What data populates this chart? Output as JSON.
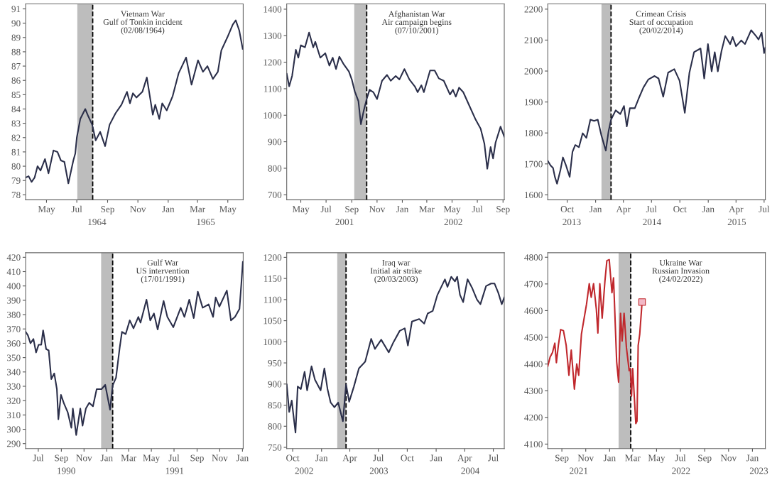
{
  "chart_data": [
    {
      "type": "line",
      "xlim": [
        "1964-03-20",
        "1965-06-01"
      ],
      "ylim": [
        77.65,
        91.35
      ],
      "yticks": [
        78,
        79,
        80,
        81,
        82,
        83,
        84,
        85,
        86,
        87,
        88,
        89,
        90,
        91
      ],
      "xticks": [
        {
          "value": "1964-05-01",
          "label": "May"
        },
        {
          "value": "1964-07-01",
          "label": "Jul"
        },
        {
          "value": "1964-09-01",
          "label": "Sep"
        },
        {
          "value": "1964-11-01",
          "label": "Nov"
        },
        {
          "value": "1965-01-01",
          "label": "Jan"
        },
        {
          "value": "1965-03-01",
          "label": "Mar"
        },
        {
          "value": "1965-05-01",
          "label": "May"
        }
      ],
      "annotations": [
        "1964",
        "1965"
      ],
      "bands": [
        {
          "axis": "x",
          "from": "1964-07-02",
          "to": "1964-08-02",
          "color": "#bdbdbd"
        }
      ],
      "ref_lines": [
        {
          "axis": "x",
          "value": "1964-08-02",
          "label": "Vietnam War\nGulf of Tonkin incident\n(02/08/1964)",
          "color": "#000000",
          "line_style": "dashed"
        }
      ],
      "series": [
        {
          "color": "#2b2f4a",
          "x": [
            "1964-03-20",
            "1964-03-26",
            "1964-04-01",
            "1964-04-07",
            "1964-04-13",
            "1964-04-19",
            "1964-04-28",
            "1964-05-05",
            "1964-05-15",
            "1964-05-23",
            "1964-05-30",
            "1964-06-06",
            "1964-06-14",
            "1964-06-24",
            "1964-06-28",
            "1964-07-01",
            "1964-07-08",
            "1964-07-18",
            "1964-07-24",
            "1964-08-01",
            "1964-08-08",
            "1964-08-17",
            "1964-08-27",
            "1964-09-05",
            "1964-09-17",
            "1964-09-29",
            "1964-10-10",
            "1964-10-16",
            "1964-10-22",
            "1964-10-29",
            "1964-11-10",
            "1964-11-19",
            "1964-12-01",
            "1964-12-06",
            "1964-12-14",
            "1964-12-20",
            "1964-12-29",
            "1965-01-10",
            "1965-01-22",
            "1965-02-06",
            "1965-02-17",
            "1965-03-02",
            "1965-03-12",
            "1965-03-21",
            "1965-04-01",
            "1965-04-11",
            "1965-04-18",
            "1965-04-30",
            "1965-05-11",
            "1965-05-17",
            "1965-05-24",
            "1965-05-31"
          ],
          "values": [
            79.2,
            79.3,
            78.9,
            79.2,
            80.0,
            79.7,
            80.5,
            79.5,
            81.1,
            81.0,
            80.4,
            80.3,
            78.8,
            80.4,
            80.9,
            82.0,
            83.3,
            84.0,
            83.5,
            82.9,
            81.8,
            82.4,
            81.4,
            82.9,
            83.7,
            84.3,
            85.2,
            84.4,
            85.1,
            84.8,
            85.2,
            86.2,
            83.6,
            84.3,
            83.3,
            84.4,
            83.9,
            84.9,
            86.5,
            87.6,
            85.7,
            87.4,
            86.6,
            87.0,
            86.1,
            86.6,
            88.1,
            89.0,
            89.9,
            90.2,
            89.5,
            88.2
          ]
        }
      ]
    },
    {
      "type": "line",
      "xlim": [
        "2001-03-28",
        "2002-09-04"
      ],
      "ylim": [
        681,
        1420
      ],
      "yticks": [
        700,
        800,
        900,
        1000,
        1100,
        1200,
        1300,
        1400
      ],
      "xticks": [
        {
          "value": "2001-05-01",
          "label": "May"
        },
        {
          "value": "2001-07-01",
          "label": "Jul"
        },
        {
          "value": "2001-09-01",
          "label": "Sep"
        },
        {
          "value": "2001-11-01",
          "label": "Nov"
        },
        {
          "value": "2002-01-01",
          "label": "Jan"
        },
        {
          "value": "2002-03-01",
          "label": "Mar"
        },
        {
          "value": "2002-05-01",
          "label": "May"
        },
        {
          "value": "2002-07-01",
          "label": "Jul"
        },
        {
          "value": "2002-09-01",
          "label": "Sep"
        }
      ],
      "annotations": [
        "2001",
        "2002"
      ],
      "bands": [
        {
          "axis": "x",
          "from": "2001-09-07",
          "to": "2001-10-07",
          "color": "#bdbdbd"
        }
      ],
      "ref_lines": [
        {
          "axis": "x",
          "value": "2001-10-07",
          "label": "Afghanistan War\nAir campaign begins\n(07/10/2001)",
          "color": "#000000",
          "line_style": "dashed"
        }
      ],
      "series": [
        {
          "color": "#2b2f4a",
          "x": [
            "2001-03-28",
            "2001-04-03",
            "2001-04-10",
            "2001-04-19",
            "2001-04-25",
            "2001-05-01",
            "2001-05-11",
            "2001-05-21",
            "2001-05-31",
            "2001-06-05",
            "2001-06-17",
            "2001-06-29",
            "2001-07-09",
            "2001-07-17",
            "2001-07-25",
            "2001-08-02",
            "2001-08-13",
            "2001-08-25",
            "2001-09-01",
            "2001-09-08",
            "2001-09-17",
            "2001-09-23",
            "2001-09-30",
            "2001-10-07",
            "2001-10-14",
            "2001-10-23",
            "2001-11-01",
            "2001-11-13",
            "2001-11-25",
            "2001-12-04",
            "2001-12-16",
            "2001-12-25",
            "2002-01-06",
            "2002-01-18",
            "2002-01-31",
            "2002-02-07",
            "2002-02-16",
            "2002-02-22",
            "2002-03-09",
            "2002-03-20",
            "2002-03-30",
            "2002-04-11",
            "2002-04-26",
            "2002-05-03",
            "2002-05-10",
            "2002-05-18",
            "2002-05-28",
            "2002-06-12",
            "2002-06-27",
            "2002-07-09",
            "2002-07-18",
            "2002-07-25",
            "2002-08-02",
            "2002-08-08",
            "2002-08-14",
            "2002-08-26",
            "2002-09-04"
          ],
          "values": [
            1156,
            1109,
            1148,
            1247,
            1217,
            1264,
            1256,
            1312,
            1256,
            1277,
            1217,
            1234,
            1187,
            1217,
            1174,
            1221,
            1191,
            1165,
            1135,
            1091,
            1053,
            966,
            1018,
            1061,
            1096,
            1087,
            1061,
            1130,
            1152,
            1130,
            1148,
            1135,
            1174,
            1135,
            1109,
            1087,
            1113,
            1087,
            1169,
            1169,
            1139,
            1130,
            1078,
            1096,
            1070,
            1104,
            1087,
            1035,
            983,
            949,
            893,
            798,
            880,
            837,
            897,
            957,
            919
          ]
        }
      ]
    },
    {
      "type": "line",
      "xlim": [
        "2013-07-30",
        "2015-07-05"
      ],
      "ylim": [
        1584,
        2217
      ],
      "yticks": [
        1600,
        1700,
        1800,
        1900,
        2000,
        2100,
        2200
      ],
      "xticks": [
        {
          "value": "2013-10-01",
          "label": "Oct"
        },
        {
          "value": "2014-01-01",
          "label": "Jan"
        },
        {
          "value": "2014-04-01",
          "label": "Apr"
        },
        {
          "value": "2014-07-01",
          "label": "Jul"
        },
        {
          "value": "2014-10-01",
          "label": "Oct"
        },
        {
          "value": "2015-01-01",
          "label": "Jan"
        },
        {
          "value": "2015-04-01",
          "label": "Apr"
        },
        {
          "value": "2015-07-01",
          "label": "Jul"
        }
      ],
      "annotations": [
        "2013",
        "2014",
        "2015"
      ],
      "bands": [
        {
          "axis": "x",
          "from": "2014-01-20",
          "to": "2014-02-20",
          "color": "#bdbdbd"
        }
      ],
      "ref_lines": [
        {
          "axis": "x",
          "value": "2014-02-20",
          "label": "Crimean Crisis\nStart of occupation\n(20/02/2014)",
          "color": "#000000",
          "line_style": "dashed"
        }
      ],
      "series": [
        {
          "color": "#2b2f4a",
          "x": [
            "2013-07-30",
            "2013-08-08",
            "2013-08-16",
            "2013-08-22",
            "2013-08-29",
            "2013-09-09",
            "2013-09-17",
            "2013-09-27",
            "2013-10-09",
            "2013-10-18",
            "2013-10-27",
            "2013-11-08",
            "2013-11-20",
            "2013-12-02",
            "2013-12-15",
            "2013-12-27",
            "2014-01-08",
            "2014-01-20",
            "2014-02-03",
            "2014-02-12",
            "2014-02-20",
            "2014-03-07",
            "2014-03-22",
            "2014-04-03",
            "2014-04-12",
            "2014-04-22",
            "2014-05-08",
            "2014-05-20",
            "2014-06-05",
            "2014-06-21",
            "2014-07-11",
            "2014-07-24",
            "2014-08-08",
            "2014-08-24",
            "2014-09-13",
            "2014-09-30",
            "2014-10-17",
            "2014-11-01",
            "2014-11-16",
            "2014-12-07",
            "2014-12-19",
            "2014-12-31",
            "2015-01-12",
            "2015-01-22",
            "2015-02-01",
            "2015-02-13",
            "2015-02-25",
            "2015-03-13",
            "2015-03-21",
            "2015-04-01",
            "2015-04-18",
            "2015-04-30",
            "2015-05-20",
            "2015-06-05",
            "2015-06-13",
            "2015-06-23",
            "2015-07-01",
            "2015-07-05"
          ],
          "values": [
            1710,
            1695,
            1687,
            1658,
            1636,
            1680,
            1721,
            1695,
            1658,
            1739,
            1761,
            1754,
            1799,
            1784,
            1843,
            1839,
            1843,
            1791,
            1743,
            1806,
            1843,
            1873,
            1861,
            1887,
            1821,
            1880,
            1880,
            1910,
            1947,
            1973,
            1984,
            1976,
            1917,
            1995,
            2006,
            1969,
            1865,
            1995,
            2061,
            2073,
            1976,
            2087,
            1999,
            2061,
            1999,
            2065,
            2113,
            2087,
            2110,
            2080,
            2099,
            2087,
            2132,
            2113,
            2102,
            2124,
            2058,
            2076
          ]
        }
      ]
    },
    {
      "type": "line",
      "xlim": [
        "1990-05-28",
        "1992-01-03"
      ],
      "ylim": [
        286.5,
        423.2
      ],
      "yticks": [
        290,
        300,
        310,
        320,
        330,
        340,
        350,
        360,
        370,
        380,
        390,
        400,
        410,
        420
      ],
      "xticks": [
        {
          "value": "1990-07-01",
          "label": "Jul"
        },
        {
          "value": "1990-09-01",
          "label": "Sep"
        },
        {
          "value": "1990-11-01",
          "label": "Nov"
        },
        {
          "value": "1991-01-01",
          "label": "Jan"
        },
        {
          "value": "1991-03-01",
          "label": "Mar"
        },
        {
          "value": "1991-05-01",
          "label": "May"
        },
        {
          "value": "1991-07-01",
          "label": "Jul"
        },
        {
          "value": "1991-09-01",
          "label": "Sep"
        },
        {
          "value": "1991-11-01",
          "label": "Nov"
        },
        {
          "value": "1992-01-01",
          "label": "Jan"
        }
      ],
      "annotations": [
        "1990",
        "1991"
      ],
      "bands": [
        {
          "axis": "x",
          "from": "1990-12-17",
          "to": "1991-01-17",
          "color": "#bdbdbd"
        }
      ],
      "ref_lines": [
        {
          "axis": "x",
          "value": "1991-01-17",
          "label": "Gulf War\nUS intervention\n(17/01/1991)",
          "color": "#000000",
          "line_style": "dashed"
        }
      ],
      "series": [
        {
          "color": "#2b2f4a",
          "x": [
            "1990-05-28",
            "1990-06-03",
            "1990-06-10",
            "1990-06-18",
            "1990-06-25",
            "1990-07-02",
            "1990-07-09",
            "1990-07-14",
            "1990-07-22",
            "1990-07-29",
            "1990-08-05",
            "1990-08-13",
            "1990-08-20",
            "1990-08-24",
            "1990-08-31",
            "1990-09-08",
            "1990-09-18",
            "1990-09-28",
            "1990-10-02",
            "1990-10-11",
            "1990-10-22",
            "1990-10-28",
            "1990-11-06",
            "1990-11-15",
            "1990-11-25",
            "1990-12-05",
            "1990-12-18",
            "1990-12-28",
            "1991-01-10",
            "1991-01-17",
            "1991-01-26",
            "1991-02-05",
            "1991-02-11",
            "1991-02-21",
            "1991-03-04",
            "1991-03-14",
            "1991-03-27",
            "1991-04-02",
            "1991-04-18",
            "1991-04-28",
            "1991-05-08",
            "1991-05-18",
            "1991-06-03",
            "1991-06-13",
            "1991-06-29",
            "1991-07-19",
            "1991-07-29",
            "1991-08-11",
            "1991-08-23",
            "1991-09-03",
            "1991-09-16",
            "1991-10-02",
            "1991-10-14",
            "1991-10-21",
            "1991-10-31",
            "1991-11-20",
            "1991-12-01",
            "1991-12-12",
            "1991-12-24",
            "1991-12-29",
            "1992-01-02"
          ],
          "values": [
            368,
            365.6,
            360,
            363,
            353.6,
            359,
            359,
            369,
            356,
            355,
            335,
            339,
            328,
            307,
            324,
            318,
            312,
            301,
            314.5,
            296,
            314.5,
            302.5,
            314.5,
            318.5,
            316,
            328,
            328,
            331,
            313.7,
            330.5,
            336,
            357,
            368,
            366.4,
            376,
            370.4,
            378.4,
            374.4,
            390.4,
            376,
            380.8,
            369.6,
            389.6,
            378.4,
            371.2,
            384.8,
            378.4,
            390.4,
            377.6,
            396,
            384.8,
            387.2,
            378.4,
            392,
            385.6,
            396.8,
            376,
            378.4,
            384,
            401.6,
            416.8
          ]
        }
      ]
    },
    {
      "type": "line",
      "xlim": [
        "2002-09-12",
        "2004-08-05"
      ],
      "ylim": [
        747,
        1211
      ],
      "yticks": [
        750,
        800,
        850,
        900,
        950,
        1000,
        1050,
        1100,
        1150,
        1200
      ],
      "xticks": [
        {
          "value": "2002-10-01",
          "label": "Oct"
        },
        {
          "value": "2003-01-01",
          "label": "Jan"
        },
        {
          "value": "2003-04-01",
          "label": "Apr"
        },
        {
          "value": "2003-07-01",
          "label": "Jul"
        },
        {
          "value": "2003-10-01",
          "label": "Oct"
        },
        {
          "value": "2004-01-01",
          "label": "Jan"
        },
        {
          "value": "2004-04-01",
          "label": "Apr"
        },
        {
          "value": "2004-07-01",
          "label": "Jul"
        }
      ],
      "annotations": [
        "2002",
        "2003",
        "2004"
      ],
      "bands": [
        {
          "axis": "x",
          "from": "2003-02-20",
          "to": "2003-03-20",
          "color": "#bdbdbd"
        }
      ],
      "ref_lines": [
        {
          "axis": "x",
          "value": "2003-03-20",
          "label": "Iraq war\nInitial air strike\n(20/03/2003)",
          "color": "#000000",
          "line_style": "dashed"
        }
      ],
      "series": [
        {
          "color": "#2b2f4a",
          "x": [
            "2002-09-12",
            "2002-09-20",
            "2002-09-28",
            "2002-10-03",
            "2002-10-10",
            "2002-10-17",
            "2002-10-27",
            "2002-11-08",
            "2002-11-16",
            "2002-11-30",
            "2002-12-11",
            "2002-12-29",
            "2003-01-10",
            "2003-01-20",
            "2003-01-30",
            "2003-02-11",
            "2003-02-23",
            "2003-03-10",
            "2003-03-20",
            "2003-03-30",
            "2003-04-14",
            "2003-04-30",
            "2003-05-20",
            "2003-06-08",
            "2003-06-20",
            "2003-07-10",
            "2003-08-03",
            "2003-08-18",
            "2003-09-07",
            "2003-09-23",
            "2003-10-03",
            "2003-10-16",
            "2003-11-08",
            "2003-11-24",
            "2003-12-05",
            "2003-12-21",
            "2004-01-05",
            "2004-01-29",
            "2004-02-06",
            "2004-02-18",
            "2004-03-01",
            "2004-03-08",
            "2004-03-17",
            "2004-03-27",
            "2004-04-10",
            "2004-04-25",
            "2004-05-10",
            "2004-05-21",
            "2004-06-08",
            "2004-06-24",
            "2004-07-05",
            "2004-07-17",
            "2004-07-28",
            "2004-08-05"
          ],
          "values": [
            899,
            834,
            861,
            829,
            785,
            894,
            888,
            929,
            885,
            942,
            910,
            885,
            937,
            888,
            856,
            845,
            856,
            812,
            899,
            858,
            894,
            937,
            953,
            1007,
            983,
            1005,
            975,
            999,
            1026,
            1032,
            991,
            1048,
            1054,
            1043,
            1067,
            1073,
            1111,
            1148,
            1130,
            1154,
            1143,
            1154,
            1111,
            1094,
            1148,
            1127,
            1100,
            1089,
            1132,
            1138,
            1138,
            1116,
            1089,
            1105
          ]
        }
      ]
    },
    {
      "type": "line",
      "xlim": [
        "2021-07-27",
        "2023-02-03"
      ],
      "ylim": [
        4083,
        4817
      ],
      "yticks": [
        4100,
        4200,
        4300,
        4400,
        4500,
        4600,
        4700,
        4800
      ],
      "xticks": [
        {
          "value": "2021-09-01",
          "label": "Sep"
        },
        {
          "value": "2021-11-01",
          "label": "Nov"
        },
        {
          "value": "2022-01-01",
          "label": "Jan"
        },
        {
          "value": "2022-03-01",
          "label": "Mar"
        },
        {
          "value": "2022-05-01",
          "label": "May"
        },
        {
          "value": "2022-07-01",
          "label": "Jul"
        },
        {
          "value": "2022-09-01",
          "label": "Sep"
        },
        {
          "value": "2022-11-01",
          "label": "Nov"
        },
        {
          "value": "2023-01-01",
          "label": "Jan"
        }
      ],
      "annotations": [
        "2021",
        "2022",
        "2023"
      ],
      "bands": [
        {
          "axis": "x",
          "from": "2022-01-24",
          "to": "2022-02-24",
          "color": "#bdbdbd"
        }
      ],
      "ref_lines": [
        {
          "axis": "x",
          "value": "2022-02-24",
          "label": "Ukraine War\nRussian Invasion\n(24/02/2022)",
          "color": "#000000",
          "line_style": "dashed"
        }
      ],
      "series": [
        {
          "color": "#c0282d",
          "x": [
            "2021-07-27",
            "2021-08-02",
            "2021-08-08",
            "2021-08-14",
            "2021-08-18",
            "2021-08-23",
            "2021-08-29",
            "2021-09-05",
            "2021-09-12",
            "2021-09-19",
            "2021-09-25",
            "2021-10-03",
            "2021-10-09",
            "2021-10-14",
            "2021-10-21",
            "2021-10-27",
            "2021-11-03",
            "2021-11-10",
            "2021-11-15",
            "2021-11-21",
            "2021-11-28",
            "2021-12-02",
            "2021-12-07",
            "2021-12-13",
            "2021-12-20",
            "2021-12-25",
            "2021-12-31",
            "2022-01-07",
            "2022-01-11",
            "2022-01-19",
            "2022-01-24",
            "2022-01-29",
            "2022-02-02",
            "2022-02-07",
            "2022-02-13",
            "2022-02-20",
            "2022-02-23",
            "2022-02-26",
            "2022-03-01",
            "2022-03-05",
            "2022-03-09",
            "2022-03-12",
            "2022-03-15",
            "2022-03-19",
            "2022-03-25"
          ],
          "values": [
            4392,
            4426,
            4443,
            4478,
            4405,
            4470,
            4529,
            4525,
            4470,
            4358,
            4452,
            4306,
            4400,
            4358,
            4512,
            4564,
            4624,
            4701,
            4650,
            4701,
            4607,
            4516,
            4701,
            4572,
            4710,
            4787,
            4791,
            4667,
            4723,
            4409,
            4332,
            4590,
            4486,
            4590,
            4461,
            4375,
            4383,
            4280,
            4383,
            4280,
            4177,
            4186,
            4469,
            4512,
            4632
          ]
        },
        {
          "type": "scatter",
          "color": "#f2b8c6",
          "marker": "square",
          "x": [
            "2022-03-25"
          ],
          "values": [
            4632
          ]
        }
      ]
    }
  ]
}
